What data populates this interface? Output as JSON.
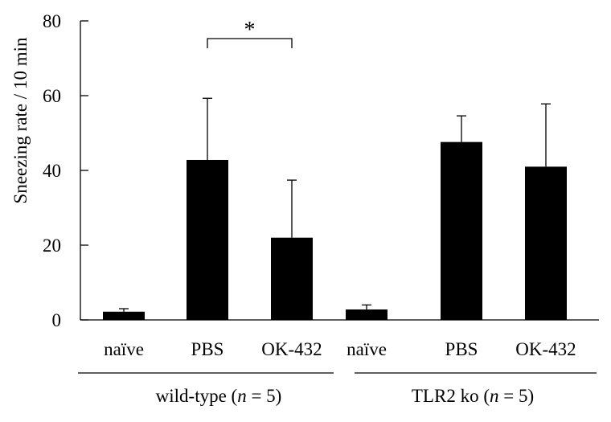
{
  "chart_data": {
    "type": "bar",
    "ylabel": "Sneezing rate / 10 min",
    "xlabel": "",
    "ylim": [
      0,
      80
    ],
    "yticks": [
      0,
      20,
      40,
      60,
      80
    ],
    "categories": [
      "naïve",
      "PBS",
      "OK-432",
      "naïve",
      "PBS",
      "OK-432"
    ],
    "values": [
      2.2,
      42.8,
      22.0,
      2.8,
      47.6,
      41.0
    ],
    "error_up": [
      0.8,
      16.5,
      15.4,
      1.2,
      7.0,
      16.8
    ],
    "bar_color": "#000000",
    "groups": [
      {
        "label_prefix": "wild-type (",
        "n_symbol": "n",
        "label_suffix": " = 5)",
        "categories": [
          0,
          1,
          2
        ]
      },
      {
        "label_prefix": "TLR2 ko (",
        "n_symbol": "n",
        "label_suffix": " = 5)",
        "categories": [
          3,
          4,
          5
        ]
      }
    ],
    "significance": [
      {
        "from": 1,
        "to": 2,
        "label": "*"
      }
    ]
  }
}
